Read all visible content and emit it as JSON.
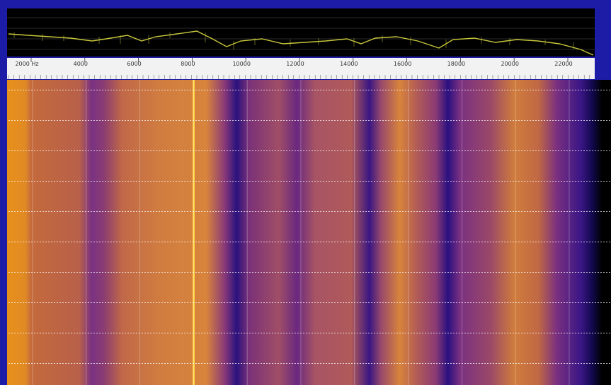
{
  "frequency_axis": {
    "labels": [
      "2000 Hz",
      "4000",
      "6000",
      "8000",
      "10000",
      "12000",
      "14000",
      "16000",
      "18000",
      "20000",
      "22000"
    ]
  }
}
